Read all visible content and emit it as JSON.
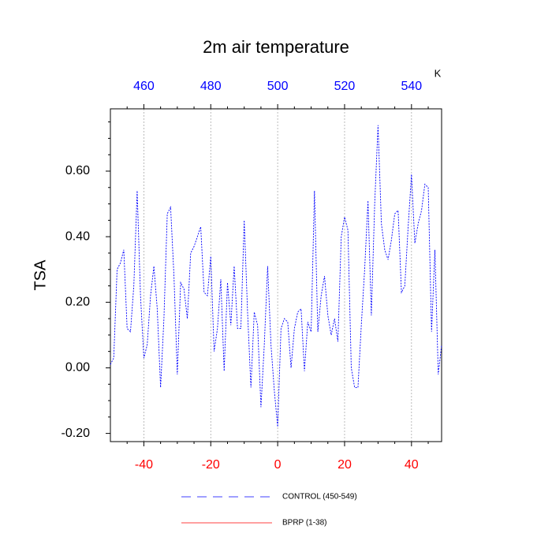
{
  "chart_data": {
    "type": "line",
    "title": "2m air temperature",
    "ylabel": "TSA",
    "x2label": "K",
    "x": [
      -50,
      -49,
      -48,
      -47,
      -46,
      -45,
      -44,
      -43,
      -42,
      -41,
      -40,
      -39,
      -38,
      -37,
      -36,
      -35,
      -34,
      -33,
      -32,
      -31,
      -30,
      -29,
      -28,
      -27,
      -26,
      -25,
      -24,
      -23,
      -22,
      -21,
      -20,
      -19,
      -18,
      -17,
      -16,
      -15,
      -14,
      -13,
      -12,
      -11,
      -10,
      -9,
      -8,
      -7,
      -6,
      -5,
      -4,
      -3,
      -2,
      -1,
      0,
      1,
      2,
      3,
      4,
      5,
      6,
      7,
      8,
      9,
      10,
      11,
      12,
      13,
      14,
      15,
      16,
      17,
      18,
      19,
      20,
      21,
      22,
      23,
      24,
      25,
      26,
      27,
      28,
      29,
      30,
      31,
      32,
      33,
      34,
      35,
      36,
      37,
      38,
      39,
      40,
      41,
      42,
      43,
      44,
      45,
      46,
      47,
      48,
      49
    ],
    "series": [
      {
        "name": "CONTROL (450-549)",
        "color": "#0000ff",
        "dash": "dashed",
        "values": [
          0.01,
          0.03,
          0.3,
          0.32,
          0.36,
          0.12,
          0.11,
          0.25,
          0.54,
          0.22,
          0.03,
          0.07,
          0.22,
          0.31,
          0.18,
          -0.06,
          0.15,
          0.47,
          0.49,
          0.28,
          -0.02,
          0.26,
          0.24,
          0.15,
          0.35,
          0.37,
          0.4,
          0.43,
          0.23,
          0.22,
          0.34,
          0.05,
          0.12,
          0.27,
          -0.01,
          0.26,
          0.13,
          0.31,
          0.12,
          0.12,
          0.45,
          0.17,
          -0.06,
          0.17,
          0.13,
          -0.12,
          0.07,
          0.31,
          0.07,
          -0.07,
          -0.18,
          0.12,
          0.15,
          0.14,
          0.0,
          0.12,
          0.17,
          0.18,
          -0.01,
          0.14,
          0.11,
          0.54,
          0.11,
          0.22,
          0.28,
          0.16,
          0.1,
          0.15,
          0.08,
          0.4,
          0.46,
          0.42,
          0.0,
          -0.06,
          -0.06,
          0.13,
          0.3,
          0.51,
          0.16,
          0.5,
          0.74,
          0.44,
          0.36,
          0.33,
          0.39,
          0.47,
          0.48,
          0.23,
          0.25,
          0.43,
          0.59,
          0.38,
          0.44,
          0.48,
          0.56,
          0.55,
          0.11,
          0.36,
          -0.02,
          0.07
        ]
      },
      {
        "name": "BPRP (1-38)",
        "color": "#ff0000",
        "dash": "solid"
      }
    ],
    "xlim": [
      -50,
      49
    ],
    "xticks": [
      -40,
      -20,
      0,
      20,
      40
    ],
    "xminorticks": [
      -45,
      -35,
      -30,
      -25,
      -15,
      -10,
      -5,
      5,
      10,
      15,
      25,
      30,
      35,
      45
    ],
    "xtick_color": "#ff0000",
    "x2lim": [
      450,
      549
    ],
    "x2ticks": [
      460,
      480,
      500,
      520,
      540
    ],
    "x2minorticks": [
      455,
      465,
      470,
      475,
      485,
      490,
      495,
      505,
      510,
      515,
      525,
      530,
      535,
      545
    ],
    "x2tick_color": "#0000ff",
    "ylim": [
      -0.225,
      0.79
    ],
    "yticks": [
      {
        "value": -0.2,
        "label": "-0.20"
      },
      {
        "value": 0,
        "label": "0.00"
      },
      {
        "value": 0.2,
        "label": "0.20"
      },
      {
        "value": 0.4,
        "label": "0.40"
      },
      {
        "value": 0.6,
        "label": "0.60"
      }
    ],
    "yminorticks": [
      -0.15,
      -0.1,
      -0.05,
      0.05,
      0.1,
      0.15,
      0.25,
      0.3,
      0.35,
      0.45,
      0.5,
      0.55,
      0.65,
      0.7,
      0.75
    ],
    "xgrid": true
  }
}
